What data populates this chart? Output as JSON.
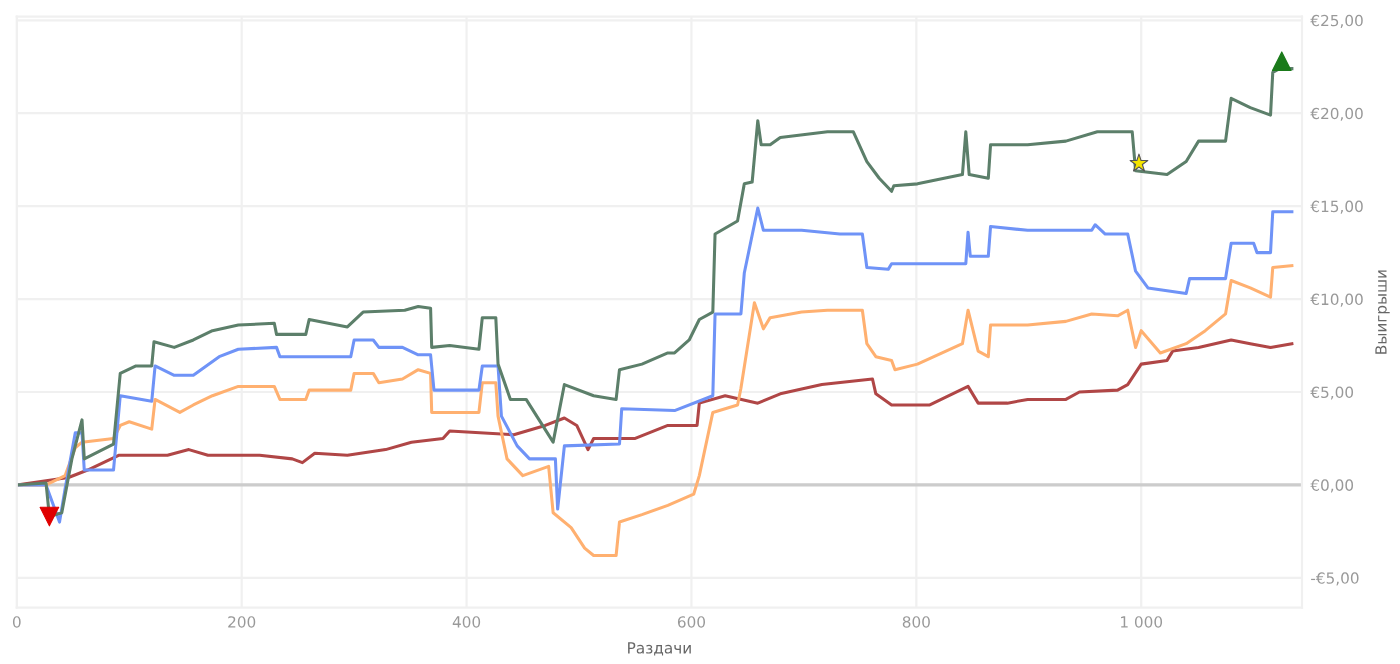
{
  "chart_data": {
    "type": "line",
    "xlabel": "Раздачи",
    "ylabel": "Выигрыши",
    "xlim": [
      0,
      1143
    ],
    "ylim": [
      -6.6,
      25.2
    ],
    "xticks": [
      0,
      200,
      400,
      600,
      800,
      {
        "value": 1000,
        "label": "1 000"
      }
    ],
    "yticks": [
      {
        "value": -5,
        "label": "-€5,00"
      },
      {
        "value": 0,
        "label": "€0,00"
      },
      {
        "value": 5,
        "label": "€5,00"
      },
      {
        "value": 10,
        "label": "€10,00"
      },
      {
        "value": 15,
        "label": "€15,00"
      },
      {
        "value": 20,
        "label": "€20,00"
      },
      {
        "value": 25,
        "label": "€25,00"
      }
    ],
    "grid": true,
    "marker": "none",
    "ref_lines": [
      {
        "axis": "y",
        "value": 0,
        "color": "#cccccc"
      }
    ],
    "series": [
      {
        "color": "#b04646",
        "x": [
          0,
          46,
          63,
          91,
          100,
          134,
          153,
          170,
          216,
          245,
          254,
          265,
          294,
          328,
          351,
          379,
          385,
          442,
          470,
          487,
          498,
          508,
          513,
          550,
          579,
          605,
          607,
          630,
          659,
          679,
          716,
          761,
          764,
          778,
          812,
          846,
          855,
          881,
          899,
          933,
          945,
          979,
          988,
          1000,
          1023,
          1028,
          1051,
          1080,
          1097,
          1115,
          1134
        ],
        "values": [
          0,
          0.4,
          0.8,
          1.6,
          1.6,
          1.6,
          1.9,
          1.6,
          1.6,
          1.4,
          1.2,
          1.7,
          1.6,
          1.9,
          2.3,
          2.5,
          2.9,
          2.7,
          3.2,
          3.6,
          3.2,
          1.9,
          2.5,
          2.5,
          3.2,
          3.2,
          4.4,
          4.8,
          4.4,
          4.9,
          5.4,
          5.7,
          4.9,
          4.3,
          4.3,
          5.3,
          4.4,
          4.4,
          4.6,
          4.6,
          5.0,
          5.1,
          5.4,
          6.5,
          6.7,
          7.2,
          7.4,
          7.8,
          7.6,
          7.4,
          7.6
        ]
      },
      {
        "color": "#ffb070",
        "x": [
          0,
          26,
          43,
          52,
          58,
          86,
          92,
          100,
          120,
          123,
          145,
          157,
          174,
          197,
          229,
          234,
          257,
          260,
          297,
          300,
          317,
          322,
          343,
          357,
          368,
          369,
          385,
          411,
          414,
          426,
          428,
          436,
          450,
          473,
          477,
          493,
          505,
          513,
          533,
          536,
          556,
          579,
          602,
          607,
          619,
          641,
          644,
          656,
          664,
          670,
          698,
          721,
          752,
          756,
          764,
          778,
          781,
          801,
          841,
          846,
          855,
          864,
          866,
          899,
          933,
          956,
          979,
          988,
          995,
          1000,
          1017,
          1040,
          1057,
          1075,
          1080,
          1097,
          1115,
          1117,
          1134
        ],
        "values": [
          0,
          0,
          0.5,
          2.0,
          2.3,
          2.5,
          3.2,
          3.4,
          3.0,
          4.6,
          3.9,
          4.3,
          4.8,
          5.3,
          5.3,
          4.6,
          4.6,
          5.1,
          5.1,
          6.0,
          6.0,
          5.5,
          5.7,
          6.2,
          6.0,
          3.9,
          3.9,
          3.9,
          5.5,
          5.5,
          3.7,
          1.4,
          0.5,
          1.0,
          -1.5,
          -2.3,
          -3.4,
          -3.8,
          -3.8,
          -2.0,
          -1.6,
          -1.1,
          -0.5,
          0.5,
          3.9,
          4.3,
          5.2,
          9.8,
          8.4,
          9.0,
          9.3,
          9.4,
          9.4,
          7.6,
          6.9,
          6.7,
          6.2,
          6.5,
          7.6,
          9.4,
          7.2,
          6.9,
          8.6,
          8.6,
          8.8,
          9.2,
          9.1,
          9.4,
          7.4,
          8.3,
          7.1,
          7.6,
          8.3,
          9.2,
          11.0,
          10.6,
          10.1,
          11.7,
          11.8
        ]
      },
      {
        "color": "#6f93f7",
        "x": [
          0,
          26,
          38,
          43,
          46,
          52,
          58,
          60,
          86,
          92,
          120,
          123,
          140,
          157,
          180,
          197,
          231,
          234,
          297,
          300,
          317,
          322,
          343,
          357,
          368,
          371,
          411,
          414,
          428,
          431,
          445,
          456,
          479,
          481,
          487,
          536,
          538,
          585,
          619,
          621,
          644,
          647,
          659,
          664,
          698,
          732,
          752,
          756,
          775,
          778,
          801,
          844,
          846,
          848,
          864,
          866,
          899,
          956,
          959,
          968,
          988,
          995,
          1006,
          1040,
          1043,
          1075,
          1080,
          1100,
          1103,
          1115,
          1117,
          1134
        ],
        "values": [
          0,
          0,
          -2.0,
          -0.2,
          0.8,
          2.8,
          2.8,
          0.8,
          0.8,
          4.8,
          4.5,
          6.4,
          5.9,
          5.9,
          6.9,
          7.3,
          7.4,
          6.9,
          6.9,
          7.8,
          7.8,
          7.4,
          7.4,
          7.0,
          7.0,
          5.1,
          5.1,
          6.4,
          6.4,
          3.7,
          2.1,
          1.4,
          1.4,
          -1.3,
          2.1,
          2.2,
          4.1,
          4.0,
          4.8,
          9.2,
          9.2,
          11.4,
          14.9,
          13.7,
          13.7,
          13.5,
          13.5,
          11.7,
          11.6,
          11.9,
          11.9,
          11.9,
          13.6,
          12.3,
          12.3,
          13.9,
          13.7,
          13.7,
          14.0,
          13.5,
          13.5,
          11.5,
          10.6,
          10.3,
          11.1,
          11.1,
          13.0,
          13.0,
          12.5,
          12.5,
          14.7,
          14.7
        ]
      },
      {
        "color": "#5c7f6a",
        "x": [
          0,
          26,
          29,
          40,
          49,
          58,
          60,
          86,
          92,
          106,
          120,
          122,
          140,
          157,
          174,
          197,
          229,
          231,
          257,
          260,
          294,
          308,
          345,
          357,
          368,
          369,
          385,
          411,
          414,
          426,
          428,
          439,
          453,
          477,
          487,
          513,
          533,
          536,
          556,
          579,
          585,
          598,
          607,
          619,
          621,
          641,
          647,
          654,
          659,
          662,
          670,
          679,
          721,
          744,
          756,
          767,
          778,
          780,
          801,
          841,
          844,
          847,
          864,
          866,
          899,
          933,
          961,
          992,
          995,
          1023,
          1040,
          1051,
          1075,
          1080,
          1097,
          1115,
          1117,
          1123,
          1134
        ],
        "values": [
          0,
          0.1,
          -1.7,
          -1.5,
          1.4,
          3.5,
          1.4,
          2.2,
          6.0,
          6.4,
          6.4,
          7.7,
          7.4,
          7.8,
          8.3,
          8.6,
          8.7,
          8.1,
          8.1,
          8.9,
          8.5,
          9.3,
          9.4,
          9.6,
          9.5,
          7.4,
          7.5,
          7.3,
          9.0,
          9.0,
          6.5,
          4.6,
          4.6,
          2.3,
          5.4,
          4.8,
          4.6,
          6.2,
          6.5,
          7.1,
          7.1,
          7.8,
          8.9,
          9.3,
          13.5,
          14.2,
          16.2,
          16.3,
          19.6,
          18.3,
          18.3,
          18.7,
          19.0,
          19.0,
          17.4,
          16.5,
          15.8,
          16.1,
          16.2,
          16.7,
          19.0,
          16.7,
          16.5,
          18.3,
          18.3,
          18.5,
          19.0,
          19.0,
          16.9,
          16.7,
          17.4,
          18.5,
          18.5,
          20.8,
          20.3,
          19.9,
          22.2,
          22.4,
          22.4
        ]
      },
      {
        "type": "scatter",
        "marker": "triangle_down",
        "color": "#e00000",
        "x": [
          29
        ],
        "values": [
          -1.7
        ]
      },
      {
        "type": "scatter",
        "marker": "star",
        "color": "#f5e400",
        "x": [
          998
        ],
        "values": [
          17.3
        ]
      },
      {
        "type": "scatter",
        "marker": "triangle",
        "color": "#1a7a1a",
        "x": [
          1125
        ],
        "values": [
          22.8
        ]
      }
    ]
  }
}
